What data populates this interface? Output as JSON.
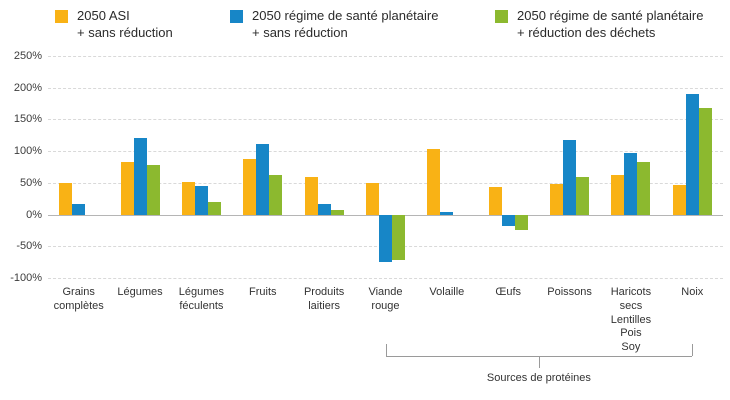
{
  "legend": {
    "items": [
      {
        "line1": "2050 ASI",
        "line2": "+ sans réduction",
        "color": "#F9B215"
      },
      {
        "line1": "2050 régime de santé planétaire",
        "line2": "+ sans réduction",
        "color": "#1786C7"
      },
      {
        "line1": "2050 régime de santé planétaire",
        "line2": "+ réduction des déchets",
        "color": "#8CB92F"
      }
    ]
  },
  "chart_data": {
    "type": "bar",
    "categories": [
      "Grains\ncomplètes",
      "Légumes",
      "Légumes\nféculents",
      "Fruits",
      "Produits\nlaitiers",
      "Viande\nrouge",
      "Volaille",
      "Œufs",
      "Poissons",
      "Haricots secs\nLentilles\nPois\nSoy",
      "Noix"
    ],
    "series": [
      {
        "name": "2050 ASI + sans réduction",
        "color": "#F9B215",
        "values": [
          50,
          83,
          52,
          88,
          60,
          50,
          103,
          44,
          48,
          63,
          46
        ]
      },
      {
        "name": "2050 régime de santé planétaire + sans réduction",
        "color": "#1786C7",
        "values": [
          17,
          120,
          45,
          112,
          17,
          -75,
          4,
          -18,
          118,
          97,
          190
        ]
      },
      {
        "name": "2050 régime de santé planétaire + réduction des déchets",
        "color": "#8CB92F",
        "values": [
          0,
          78,
          20,
          63,
          8,
          -72,
          0,
          -25,
          60,
          83,
          168
        ]
      }
    ],
    "ylim": [
      -100,
      250
    ],
    "yticks": [
      250,
      200,
      150,
      100,
      50,
      0,
      -50,
      -100
    ],
    "ytick_suffix": "%",
    "grid": true,
    "legend_position": "top",
    "bracket": {
      "label": "Sources de protéines",
      "from_index": 5,
      "to_index": 10
    }
  }
}
